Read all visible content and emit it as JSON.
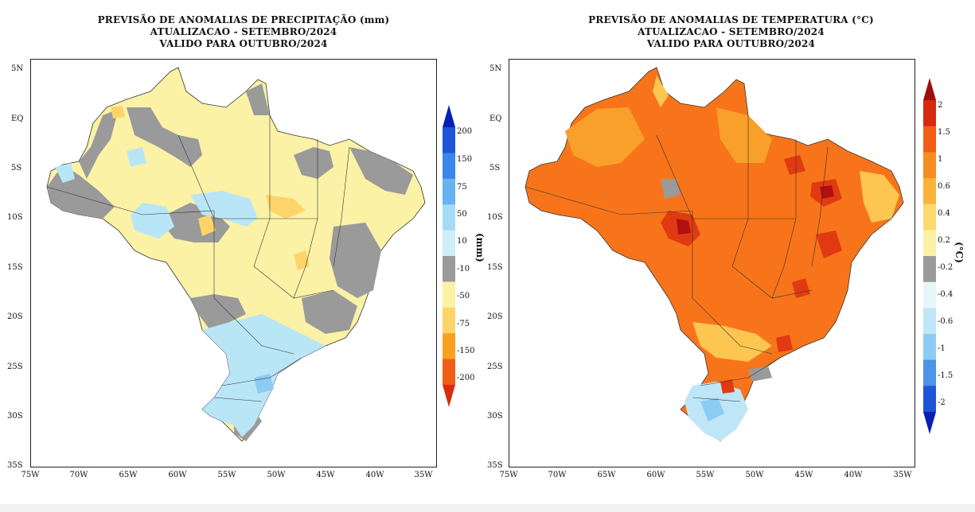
{
  "precip_map": {
    "title_lines": [
      "PREVISÃO DE ANOMALIAS DE PRECIPITAÇÃO (mm)",
      "ATUALIZACAO - SETEMBRO/2024",
      "VALIDO PARA OUTUBRO/2024"
    ],
    "unit": "(mm)",
    "legend": [
      {
        "label": "200",
        "color": "#0a3cc8"
      },
      {
        "label": "150",
        "color": "#2a6fe0"
      },
      {
        "label": "75",
        "color": "#5aa2ee"
      },
      {
        "label": "50",
        "color": "#8ccbf2"
      },
      {
        "label": "10",
        "color": "#b9e6f6"
      },
      {
        "label": "-10",
        "color": "#9a9a9a"
      },
      {
        "label": "-50",
        "color": "#fbf2a6"
      },
      {
        "label": "-75",
        "color": "#fcd46a"
      },
      {
        "label": "-150",
        "color": "#f7a21e"
      },
      {
        "label": "-200",
        "color": "#ef5d17"
      }
    ],
    "bar_colors": [
      "#0a1fb5",
      "#1e55d8",
      "#3a86ea",
      "#67b2f0",
      "#a4dbf5",
      "#cdeff8",
      "#9a9a9a",
      "#fbf2a6",
      "#fcd46a",
      "#f7a21e",
      "#ef5d17",
      "#d92b10"
    ]
  },
  "temp_map": {
    "title_lines": [
      "PREVISÃO DE ANOMALIAS DE TEMPERATURA (°C)",
      "ATUALIZACAO - SETEMBRO/2024",
      "VALIDO PARA OUTUBRO/2024"
    ],
    "unit": "(°C)",
    "legend": [
      {
        "label": "2",
        "color": "#b01010"
      },
      {
        "label": "1.5",
        "color": "#e03a12"
      },
      {
        "label": "1",
        "color": "#f7741a"
      },
      {
        "label": "0.6",
        "color": "#f9a02a"
      },
      {
        "label": "0.4",
        "color": "#fcc650"
      },
      {
        "label": "0.2",
        "color": "#fbf2a6"
      },
      {
        "label": "-0.2",
        "color": "#9a9a9a"
      },
      {
        "label": "-0.4",
        "color": "#e6f7fb"
      },
      {
        "label": "-0.6",
        "color": "#bfe6f6"
      },
      {
        "label": "-1",
        "color": "#8ccbf2"
      },
      {
        "label": "-1.5",
        "color": "#4d94e8"
      },
      {
        "label": "-2",
        "color": "#1e55d8"
      }
    ],
    "bar_colors": [
      "#a00d0d",
      "#d72810",
      "#f25d16",
      "#f78c22",
      "#fbb23c",
      "#fcd86e",
      "#fbf2a6",
      "#9a9a9a",
      "#e6f7fb",
      "#bfe6f6",
      "#8ccbf2",
      "#4d94e8",
      "#1e55d8",
      "#0a1fb5"
    ]
  },
  "axes": {
    "lat_ticks": [
      "5N",
      "EQ",
      "5S",
      "10S",
      "15S",
      "20S",
      "25S",
      "30S",
      "35S"
    ],
    "lon_ticks": [
      "75W",
      "70W",
      "65W",
      "60W",
      "55W",
      "50W",
      "45W",
      "40W",
      "35W"
    ]
  }
}
